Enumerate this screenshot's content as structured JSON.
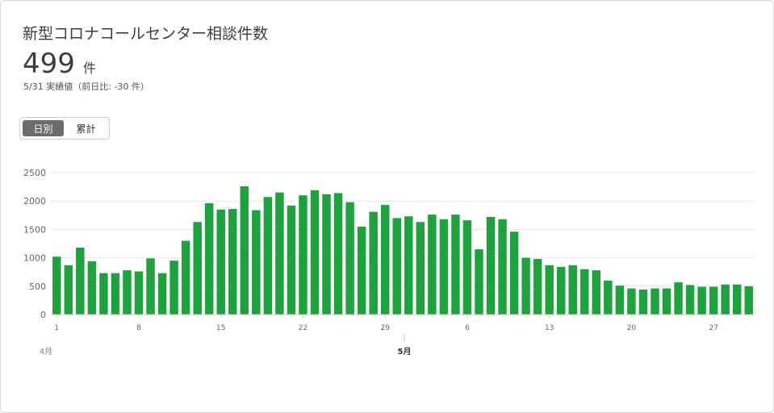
{
  "header": {
    "title": "新型コロナコールセンター相談件数",
    "value": "499",
    "unit": "件",
    "note": "5/31 実績値（前日比: -30 件）"
  },
  "toggle": {
    "options": [
      {
        "label": "日別",
        "active": true
      },
      {
        "label": "累計",
        "active": false
      }
    ]
  },
  "colors": {
    "bar": "#1da23e",
    "grid": "#e6e6e6",
    "axis": "#999999"
  },
  "chart_data": {
    "type": "bar",
    "title": "",
    "xlabel": "",
    "ylabel": "",
    "ylim": [
      0,
      2500
    ],
    "yticks": [
      0,
      500,
      1000,
      1500,
      2000,
      2500
    ],
    "grid": true,
    "x_tick_labels": [
      "1",
      "8",
      "15",
      "22",
      "29",
      "6",
      "13",
      "20",
      "27"
    ],
    "month_labels": [
      "4月",
      "5月"
    ],
    "series": [
      {
        "values": [
          1020,
          870,
          1180,
          940,
          730,
          730,
          780,
          760,
          990,
          730,
          950,
          1300,
          1630,
          1960,
          1850,
          1860,
          2260,
          1840,
          2070,
          2150,
          1920,
          2100,
          2190,
          2120,
          2140,
          1980,
          1550,
          1810,
          1930,
          1700,
          1730,
          1630,
          1760,
          1680,
          1760,
          1660,
          1150,
          1720,
          1680,
          1460,
          1000,
          980,
          870,
          840,
          870,
          800,
          780,
          600,
          510,
          460,
          440,
          460,
          460,
          570,
          520,
          490,
          490,
          530,
          530,
          499
        ]
      }
    ]
  }
}
